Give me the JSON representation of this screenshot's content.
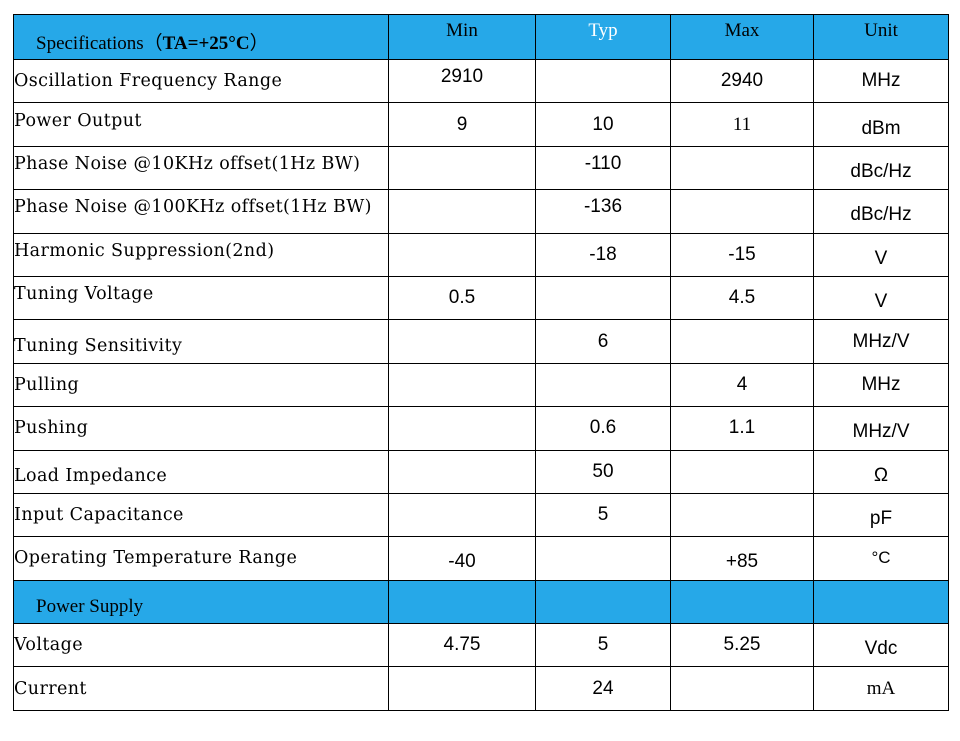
{
  "header": {
    "title_prefix": "Specifications（",
    "title_bold": "TA=+25°C",
    "title_suffix": "）",
    "min": "Min",
    "typ": "Typ",
    "max": "Max",
    "unit": "Unit"
  },
  "rows": [
    {
      "param": "Oscillation Frequency Range",
      "min": "2910",
      "typ": "",
      "max": "2940",
      "unit": "MHz"
    },
    {
      "param": "Power Output",
      "min": "9",
      "typ": "10",
      "max": "11",
      "unit": "dBm"
    },
    {
      "param": "Phase Noise @10KHz offset(1Hz BW)",
      "min": "",
      "typ": "-110",
      "max": "",
      "unit": "dBc/Hz"
    },
    {
      "param": "Phase Noise @100KHz offset(1Hz BW)",
      "min": "",
      "typ": "-136",
      "max": "",
      "unit": "dBc/Hz"
    },
    {
      "param": "Harmonic Suppression(2nd)",
      "min": "",
      "typ": "-18",
      "max": "-15",
      "unit": "V"
    },
    {
      "param": "Tuning Voltage",
      "min": "0.5",
      "typ": "",
      "max": "4.5",
      "unit": "V"
    },
    {
      "param": "Tuning Sensitivity",
      "min": "",
      "typ": "6",
      "max": "",
      "unit": "MHz/V"
    },
    {
      "param": "Pulling",
      "min": "",
      "typ": "",
      "max": "4",
      "unit": "MHz"
    },
    {
      "param": "Pushing",
      "min": "",
      "typ": "0.6",
      "max": "1.1",
      "unit": "MHz/V"
    },
    {
      "param": "Load Impedance",
      "min": "",
      "typ": "50",
      "max": "",
      "unit": "Ω"
    },
    {
      "param": "Input Capacitance",
      "min": "",
      "typ": "5",
      "max": "",
      "unit": "pF"
    },
    {
      "param": "Operating Temperature Range",
      "min": "-40",
      "typ": "",
      "max": "+85",
      "unit": "°C"
    }
  ],
  "section": {
    "title": "Power Supply"
  },
  "supply_rows": [
    {
      "param": "Voltage",
      "min": "4.75",
      "typ": "5",
      "max": "5.25",
      "unit": "Vdc"
    },
    {
      "param": "Current",
      "min": "",
      "typ": "24",
      "max": "",
      "unit": "mA"
    }
  ],
  "colors": {
    "header_bg": "#26a8e8",
    "typ_header_text": "#ffffff"
  }
}
